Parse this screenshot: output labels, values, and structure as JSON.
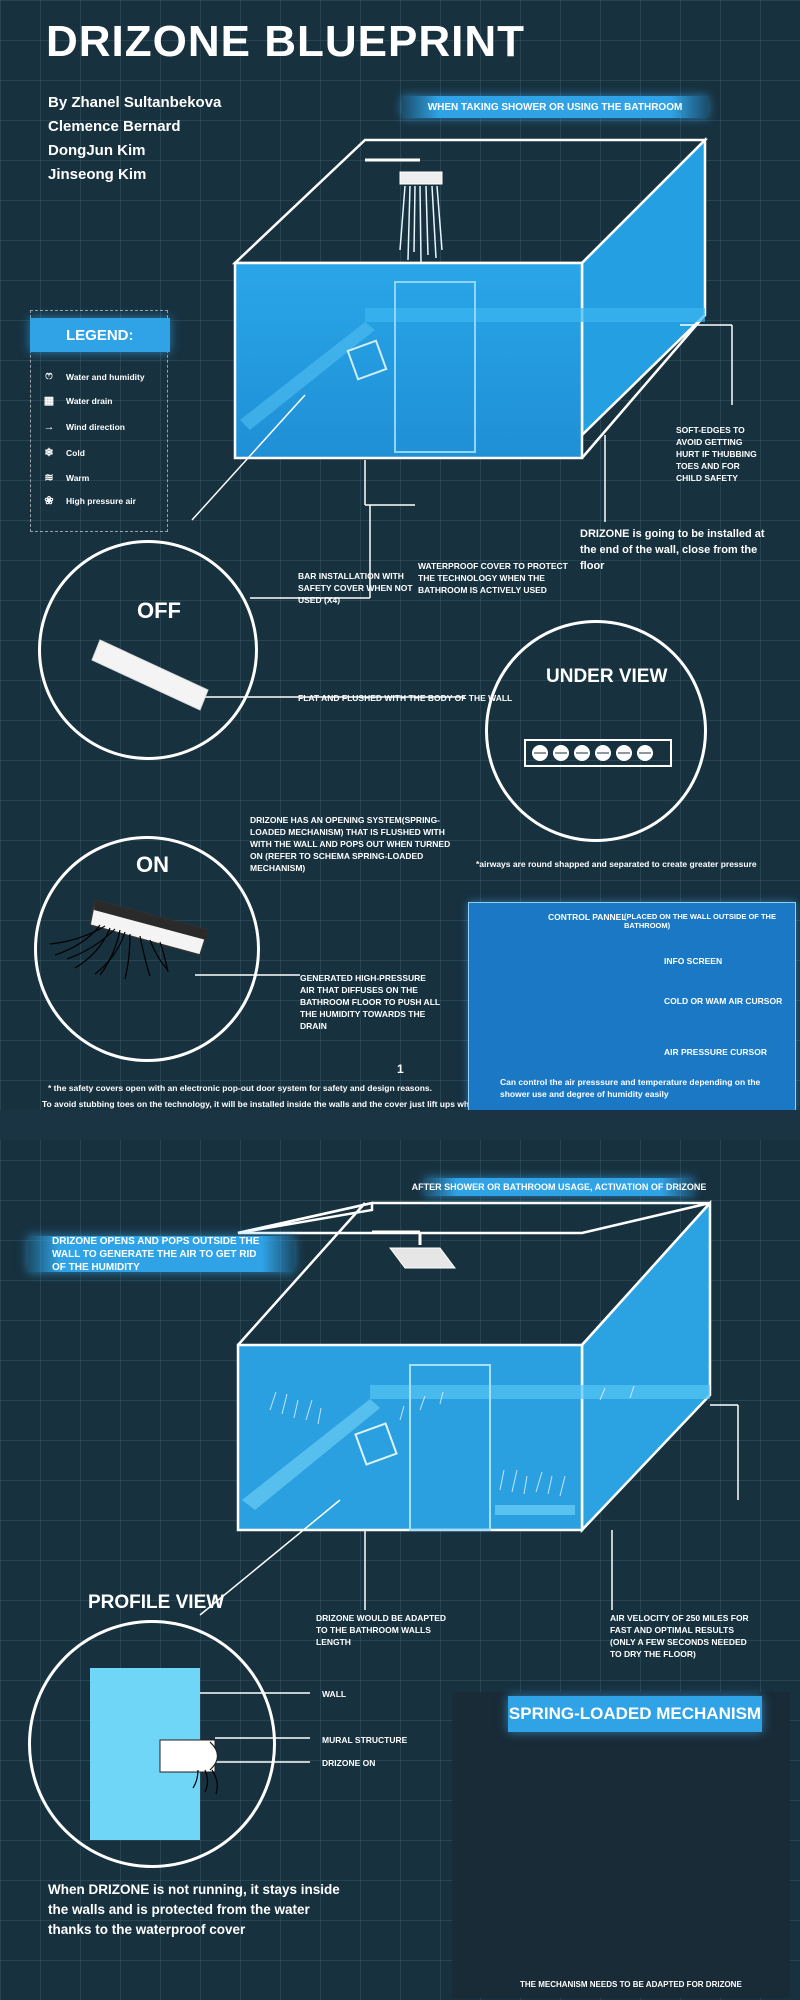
{
  "title": "DRIZONE BLUEPRINT",
  "authors": [
    "By Zhanel Sultanbekova",
    "Clemence Bernard",
    "DongJun Kim",
    "Jinseong Kim"
  ],
  "banners": {
    "top": "WHEN TAKING SHOWER OR USING THE BATHROOM",
    "middle": "AFTER SHOWER OR BATHROOM USAGE, ACTIVATION OF DRIZONE",
    "opens": "DRIZONE OPENS AND POPS OUTSIDE THE WALL TO GENERATE THE AIR TO GET RID OF THE HUMIDITY"
  },
  "legend": {
    "title": "LEGEND:",
    "items": [
      {
        "icon": "water-drop-icon",
        "glyph": "ෆ",
        "label": "Water and humidity"
      },
      {
        "icon": "water-drain-icon",
        "glyph": "▦",
        "label": "Water drain"
      },
      {
        "icon": "wind-arrow-icon",
        "glyph": "→",
        "label": "Wind direction"
      },
      {
        "icon": "cold-icon",
        "glyph": "❄",
        "label": "Cold"
      },
      {
        "icon": "warm-icon",
        "glyph": "≋",
        "label": "Warm"
      },
      {
        "icon": "high-pressure-icon",
        "glyph": "❀",
        "label": "High pressure air"
      }
    ]
  },
  "labels": {
    "soft_edges": "SOFT-EDGES TO AVOID GETTING HURT IF THUBBING TOES AND FOR CHILD SAFETY",
    "installed": "DRIZONE is going to be installed at the end of the wall, close from the floor",
    "waterproof": "WATERPROOF COVER TO PROTECT THE TECHNOLOGY WHEN THE BATHROOM IS ACTIVELY USED",
    "bar_install": "BAR INSTALLATION WITH SAFETY COVER WHEN NOT USED (X4)",
    "off": "OFF",
    "flat": "FLAT AND FLUSHED WITH THE BODY OF THE WALL",
    "under_view": "UNDER VIEW",
    "opening_system": "DRIZONE HAS AN OPENING SYSTEM(spring-loaded mechanism) THAT IS FLUSHED WITH WITH THE WALL AND POPS OUT WHEN TURNED ON (refer to schema spring-loaded mechanism)",
    "airways": "*airways are round shapped and separated to create greater pressure",
    "on": "ON",
    "generated": "GENERATED HIGH-PRESSURE AIR THAT DIFFUSES ON THE BATHROOM FLOOR TO PUSH ALL THE HUMIDITY TOWARDS THE DRAIN",
    "safety_note_1": "* the safety covers open with an electronic pop-out door system for safety and design reasons.",
    "safety_note_2": "To avoid stubbing toes on the technology, it  will be installed inside the walls and the cover just lift ups when used",
    "adapted_length": "DRIZONE WOULD BE ADAPTED TO THE BATHROOM WALLS LENGTH",
    "air_velocity": "AIR VELOCITY OF 250 MILES FOR FAST AND OPTIMAL RESULTS (only a few seconds needed to dry the floor)",
    "profile_view": "PROFILE VIEW",
    "wall": "WALL",
    "mural": "MURAL STRUCTURE",
    "drizone_on": "DRIZONE ON",
    "not_running": "When DRIZONE is not running, it stays inside the walls and is protected from the water thanks to the waterproof cover",
    "page_mark": "1"
  },
  "control_panel": {
    "title": "CONTROL PANNEL",
    "subtitle": "(PLACED ON THE WALL OUTSIDE  OF THE BATHROOM)",
    "info_screen": "INFO SCREEN",
    "cold_warm": "COLD OR WAM AIR CURSOR",
    "pressure": "AIR PRESSURE CURSOR",
    "desc": "Can control the air presssure and temperature depending on the shower use and degree of humidity easily"
  },
  "spring": {
    "title": "SPRING-LOADED MECHANISM",
    "note": "THE MECHANISM NEEDS TO BE ADAPTED  FOR DRIZONE"
  },
  "colors": {
    "background": "#17313f",
    "accent": "#2fa3e6",
    "water_tint": "#2a9fe0",
    "panel": "#1a78c4"
  }
}
